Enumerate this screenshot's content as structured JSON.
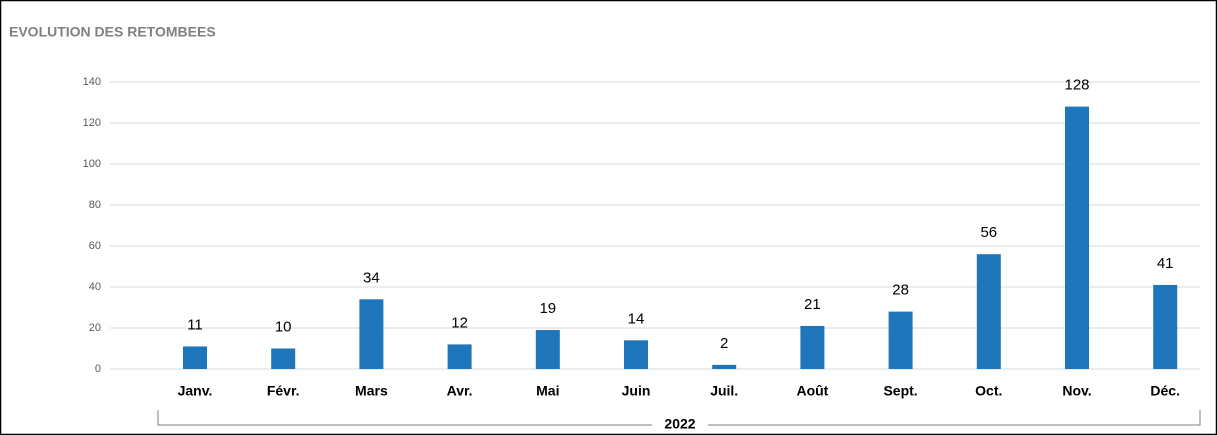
{
  "chart_data": {
    "type": "bar",
    "title": "EVOLUTION DES RETOMBEES",
    "categories": [
      "Janv.",
      "Févr.",
      "Mars",
      "Avr.",
      "Mai",
      "Juin",
      "Juil.",
      "Août",
      "Sept.",
      "Oct.",
      "Nov.",
      "Déc."
    ],
    "values": [
      11,
      10,
      34,
      12,
      19,
      14,
      2,
      21,
      28,
      56,
      128,
      41
    ],
    "x_group": "2022",
    "color": "#1f75b9",
    "ylim": [
      0,
      140
    ],
    "yticks": [
      0,
      20,
      40,
      60,
      80,
      100,
      120,
      140
    ],
    "grid": true
  }
}
